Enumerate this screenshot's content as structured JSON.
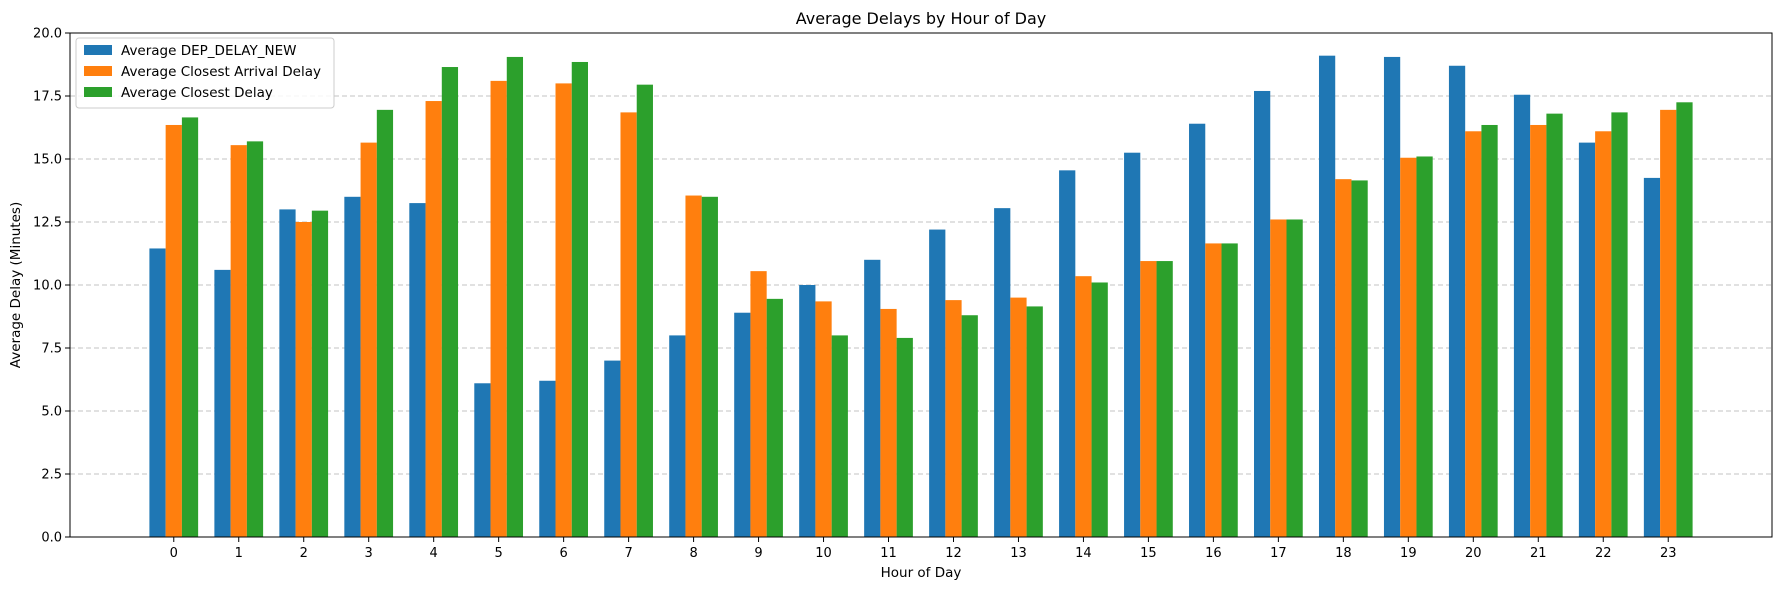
{
  "chart_data": {
    "type": "bar",
    "title": "Average Delays by Hour of Day",
    "xlabel": "Hour of Day",
    "ylabel": "Average Delay (Minutes)",
    "ylim": [
      0,
      20
    ],
    "yticks": [
      "0.0",
      "2.5",
      "5.0",
      "7.5",
      "10.0",
      "12.5",
      "15.0",
      "17.5",
      "20.0"
    ],
    "categories": [
      "0",
      "1",
      "2",
      "3",
      "4",
      "5",
      "6",
      "7",
      "8",
      "9",
      "10",
      "11",
      "12",
      "13",
      "14",
      "15",
      "16",
      "17",
      "18",
      "19",
      "20",
      "21",
      "22",
      "23"
    ],
    "grid": "y-dashed",
    "legend_position": "top-left",
    "series": [
      {
        "name": "Average DEP_DELAY_NEW",
        "color": "#1f77b4",
        "values": [
          11.45,
          10.6,
          13.0,
          13.5,
          13.25,
          6.1,
          6.2,
          7.0,
          8.0,
          8.9,
          10.0,
          11.0,
          12.2,
          13.05,
          14.55,
          15.25,
          16.4,
          17.7,
          19.1,
          19.05,
          18.7,
          17.55,
          15.65,
          14.25
        ]
      },
      {
        "name": "Average Closest Arrival Delay",
        "color": "#ff7f0e",
        "values": [
          16.35,
          15.55,
          12.5,
          15.65,
          17.3,
          18.1,
          18.0,
          16.85,
          13.55,
          10.55,
          9.35,
          9.05,
          9.4,
          9.5,
          10.35,
          10.95,
          11.65,
          12.6,
          14.2,
          15.05,
          16.1,
          16.35,
          16.1,
          16.95
        ]
      },
      {
        "name": "Average Closest Delay",
        "color": "#2ca02c",
        "values": [
          16.65,
          15.7,
          12.95,
          16.95,
          18.65,
          19.05,
          18.85,
          17.95,
          13.5,
          9.45,
          8.0,
          7.9,
          8.8,
          9.15,
          10.1,
          10.95,
          11.65,
          12.6,
          14.15,
          15.1,
          16.35,
          16.8,
          16.85,
          17.25
        ]
      }
    ]
  }
}
